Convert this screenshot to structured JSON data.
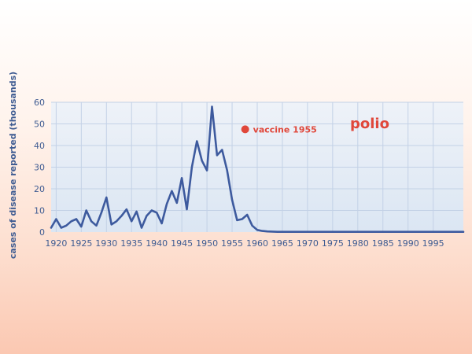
{
  "chart_data": {
    "type": "line",
    "title": "polio",
    "ylabel": "cases of disease reported (thousands)",
    "xlabel": "",
    "xlim": [
      1919,
      2001
    ],
    "ylim": [
      0,
      60
    ],
    "grid": true,
    "x_ticks": [
      1920,
      1925,
      1930,
      1935,
      1940,
      1945,
      1950,
      1955,
      1960,
      1965,
      1970,
      1975,
      1980,
      1985,
      1990,
      1995
    ],
    "y_ticks": [
      0,
      10,
      20,
      30,
      40,
      50,
      60
    ],
    "x_tick_labels": [
      "1920",
      "1925",
      "1930",
      "1935",
      "1940",
      "1945",
      "1950",
      "1955",
      "1960",
      "1965",
      "1970",
      "1975",
      "1980",
      "1985",
      "1990",
      "1995"
    ],
    "y_tick_labels": [
      "0",
      "10",
      "20",
      "30",
      "40",
      "50",
      "60"
    ],
    "series": [
      {
        "color": "#3d5a9e",
        "x": [
          1919,
          1920,
          1921,
          1922,
          1923,
          1924,
          1925,
          1926,
          1927,
          1928,
          1929,
          1930,
          1931,
          1932,
          1933,
          1934,
          1935,
          1936,
          1937,
          1938,
          1939,
          1940,
          1941,
          1942,
          1943,
          1944,
          1945,
          1946,
          1947,
          1948,
          1949,
          1950,
          1951,
          1952,
          1953,
          1954,
          1955,
          1956,
          1957,
          1958,
          1959,
          1960,
          1961,
          1962,
          1963,
          1964,
          1965,
          1966,
          1967,
          1968,
          1970,
          1975,
          1980,
          1985,
          1990,
          1995,
          2001
        ],
        "y": [
          2,
          6,
          2,
          3,
          5,
          6,
          2.5,
          10,
          5,
          3,
          9,
          16,
          3.5,
          5,
          7.5,
          10.5,
          5,
          9.5,
          2,
          7.5,
          10,
          9,
          4,
          13,
          19,
          13.5,
          25,
          10.5,
          30,
          42,
          33,
          28.5,
          58,
          35.5,
          38,
          28.5,
          15,
          5.5,
          6,
          8,
          3,
          1,
          0.5,
          0.3,
          0.2,
          0.1,
          0.1,
          0.1,
          0.1,
          0.1,
          0.1,
          0.1,
          0.1,
          0.1,
          0.1,
          0.1,
          0.1
        ]
      }
    ],
    "annotation": {
      "label": "vaccine 1955",
      "x": 1957.6,
      "y": 47.5,
      "color": "#e0473a"
    },
    "colors": {
      "plot_background": "#e4ecf6",
      "grid": "#c3d1e6",
      "axis_text": "#3f5c92",
      "title": "#e0473a"
    }
  }
}
